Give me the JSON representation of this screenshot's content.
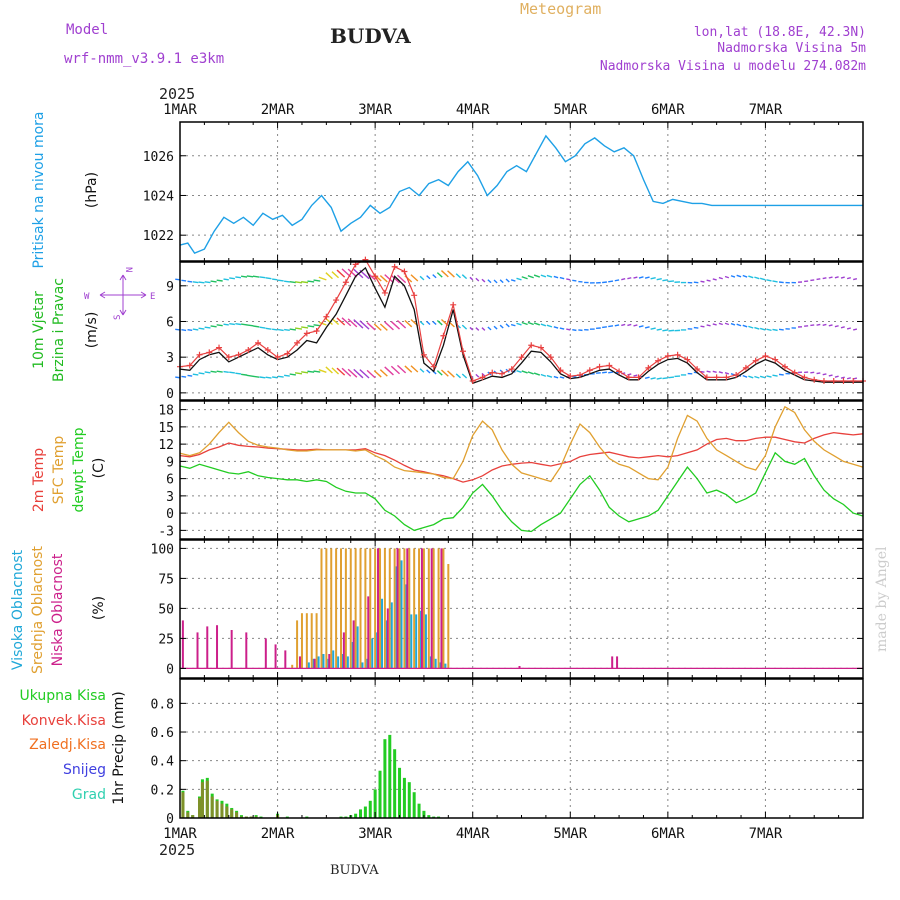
{
  "header": {
    "model_label": "Model",
    "model_name": "wrf-nmm_v3.9.1  e3km",
    "station": "BUDVA",
    "chart_title": "Meteogram",
    "lonlat": "lon,lat (18.8E, 42.3N)",
    "elevation": "Nadmorska Visina 5m",
    "model_elevation": "Nadmorska Visina u modelu 274.082m",
    "year_top": "2025",
    "year_bottom": "2025",
    "footer_station": "BUDVA",
    "watermark": "made by Angel"
  },
  "colors": {
    "pressure": "#1ea0e6",
    "temp2m": "#e8413c",
    "sfc": "#e0a030",
    "dewpt": "#22cc22",
    "cloud_high": "#20a8d8",
    "cloud_mid": "#e0a030",
    "cloud_low": "#cc1f8a",
    "rain_total": "#22cc22",
    "rain_conv": "#e8413c",
    "freezing": "#f07020",
    "snow": "#4040e0",
    "hail": "#30d0b0",
    "wind_label": "#22bb22",
    "purple": "#a040d0",
    "gold": "#e0a030"
  },
  "chart_data": [
    {
      "type": "line",
      "id": "pressure",
      "ylabel_1": "Pritisak na nivou mora",
      "ylabel_2": "(hPa)",
      "x_categories": [
        "1MAR",
        "2MAR",
        "3MAR",
        "4MAR",
        "5MAR",
        "6MAR",
        "7MAR"
      ],
      "ylim": [
        1020.7,
        1027.7
      ],
      "yticks": [
        1022,
        1024,
        1026
      ],
      "x_days": [
        0,
        0.08,
        0.15,
        0.25,
        0.35,
        0.45,
        0.55,
        0.65,
        0.75,
        0.85,
        0.95,
        1.05,
        1.15,
        1.25,
        1.35,
        1.45,
        1.55,
        1.65,
        1.75,
        1.85,
        1.95,
        2.05,
        2.15,
        2.25,
        2.35,
        2.45,
        2.55,
        2.65,
        2.75,
        2.85,
        2.95,
        3.05,
        3.15,
        3.25,
        3.35,
        3.45,
        3.55,
        3.65,
        3.75,
        3.85,
        3.95,
        4.05,
        4.15,
        4.25,
        4.35,
        4.45,
        4.55,
        4.65,
        4.75,
        4.85,
        4.95,
        5.05,
        5.15,
        5.25,
        5.35,
        5.45,
        5.55,
        5.65,
        5.75,
        5.85,
        5.95,
        6.05,
        6.15,
        6.25,
        6.35,
        6.45,
        6.55,
        6.65,
        6.75,
        6.85,
        6.95,
        7.0
      ],
      "values": [
        1021.5,
        1021.6,
        1021.1,
        1021.3,
        1022.2,
        1022.9,
        1022.6,
        1022.9,
        1022.5,
        1023.1,
        1022.8,
        1023.0,
        1022.5,
        1022.8,
        1023.5,
        1024.0,
        1023.4,
        1022.2,
        1022.6,
        1022.9,
        1023.5,
        1023.1,
        1023.4,
        1024.2,
        1024.4,
        1024.0,
        1024.6,
        1024.8,
        1024.5,
        1025.2,
        1025.7,
        1025.0,
        1024.0,
        1024.5,
        1025.2,
        1025.5,
        1025.2,
        1026.1,
        1027.0,
        1026.4,
        1025.7,
        1026.0,
        1026.6,
        1026.9,
        1026.5,
        1026.2,
        1026.4,
        1026.0,
        1024.8,
        1023.7,
        1023.6,
        1023.8,
        1023.7,
        1023.6,
        1023.6,
        1023.5,
        1023.5,
        1023.5,
        1023.5,
        1023.5,
        1023.5,
        1023.5,
        1023.5,
        1023.5,
        1023.5,
        1023.5,
        1023.5,
        1023.5,
        1023.5,
        1023.5,
        1023.5,
        1023.5
      ]
    },
    {
      "type": "line",
      "id": "wind",
      "ylabel_1": "10m Vjetar",
      "ylabel_2": "Brzina i Pravac",
      "ylabel_3": "(m/s)",
      "compass_n": "N",
      "compass_s": "S",
      "compass_w": "W",
      "compass_e": "E",
      "ylim": [
        -0.6,
        11
      ],
      "yticks": [
        0,
        3,
        6,
        9
      ],
      "barb_rows": [
        9.5,
        5.5,
        1.5
      ],
      "speed_x_days": [
        0,
        0.1,
        0.2,
        0.3,
        0.4,
        0.5,
        0.6,
        0.7,
        0.8,
        0.9,
        1.0,
        1.1,
        1.2,
        1.3,
        1.4,
        1.5,
        1.6,
        1.7,
        1.8,
        1.9,
        2.0,
        2.1,
        2.2,
        2.3,
        2.4,
        2.5,
        2.6,
        2.7,
        2.8,
        2.9,
        3.0,
        3.1,
        3.2,
        3.3,
        3.4,
        3.5,
        3.6,
        3.7,
        3.8,
        3.9,
        4.0,
        4.1,
        4.2,
        4.3,
        4.4,
        4.5,
        4.6,
        4.7,
        4.8,
        4.9,
        5.0,
        5.1,
        5.2,
        5.3,
        5.4,
        5.5,
        5.6,
        5.7,
        5.8,
        5.9,
        6.0,
        6.1,
        6.2,
        6.3,
        6.4,
        6.5,
        6.6,
        6.7,
        6.8,
        6.9,
        7.0
      ],
      "speed_values": [
        2.0,
        1.9,
        2.8,
        3.2,
        3.4,
        2.6,
        3.0,
        3.4,
        3.8,
        3.2,
        2.8,
        3.0,
        3.6,
        4.4,
        4.2,
        5.5,
        6.6,
        8.2,
        9.8,
        10.5,
        8.8,
        7.2,
        9.8,
        9.0,
        7.0,
        2.5,
        1.8,
        4.0,
        7.0,
        3.2,
        0.8,
        1.1,
        1.4,
        1.3,
        1.6,
        2.5,
        3.5,
        3.4,
        2.6,
        1.6,
        1.2,
        1.3,
        1.6,
        1.9,
        2.0,
        1.5,
        1.1,
        1.1,
        1.8,
        2.4,
        2.8,
        2.9,
        2.5,
        1.7,
        1.1,
        1.1,
        1.1,
        1.3,
        1.8,
        2.4,
        2.8,
        2.5,
        1.9,
        1.5,
        1.1,
        1.0,
        0.9,
        0.9,
        0.9,
        0.9,
        0.9
      ],
      "gust_x_days": [
        0,
        0.1,
        0.2,
        0.3,
        0.4,
        0.5,
        0.6,
        0.7,
        0.8,
        0.9,
        1.0,
        1.1,
        1.2,
        1.3,
        1.4,
        1.5,
        1.6,
        1.7,
        1.8,
        1.9,
        2.0,
        2.1,
        2.2,
        2.3,
        2.4,
        2.5,
        2.6,
        2.7,
        2.8,
        2.9,
        3.0,
        3.1,
        3.2,
        3.3,
        3.4,
        3.5,
        3.6,
        3.7,
        3.8,
        3.9,
        4.0,
        4.1,
        4.2,
        4.3,
        4.4,
        4.5,
        4.6,
        4.7,
        4.8,
        4.9,
        5.0,
        5.1,
        5.2,
        5.3,
        5.4,
        5.5,
        5.6,
        5.7,
        5.8,
        5.9,
        6.0,
        6.1,
        6.2,
        6.3,
        6.4,
        6.5,
        6.6,
        6.7,
        6.8,
        6.9,
        7.0
      ],
      "gust_values": [
        2.2,
        2.3,
        3.2,
        3.4,
        3.8,
        3.0,
        3.2,
        3.6,
        4.2,
        3.6,
        3.0,
        3.3,
        4.2,
        5.0,
        5.2,
        6.4,
        7.8,
        9.3,
        10.8,
        11.2,
        9.8,
        8.4,
        10.6,
        10.2,
        8.2,
        3.2,
        2.2,
        4.8,
        7.4,
        3.5,
        1.0,
        1.3,
        1.7,
        1.6,
        2.0,
        3.0,
        4.0,
        3.8,
        3.0,
        1.9,
        1.4,
        1.5,
        1.9,
        2.2,
        2.3,
        1.8,
        1.3,
        1.3,
        2.1,
        2.7,
        3.1,
        3.2,
        2.8,
        2.0,
        1.3,
        1.3,
        1.3,
        1.5,
        2.1,
        2.7,
        3.1,
        2.8,
        2.2,
        1.7,
        1.3,
        1.1,
        1.0,
        1.0,
        1.0,
        1.0,
        1.0
      ]
    },
    {
      "type": "line",
      "id": "temperature",
      "ylabel_1": "2m Temp",
      "ylabel_2": "SFC Temp",
      "ylabel_3": "dewpt Temp",
      "ylabel_4": "(C)",
      "ylim": [
        -4.5,
        19.5
      ],
      "yticks": [
        -3,
        0,
        3,
        6,
        9,
        12,
        15,
        18
      ],
      "x_days": [
        0,
        0.1,
        0.2,
        0.3,
        0.4,
        0.5,
        0.6,
        0.7,
        0.8,
        0.9,
        1.0,
        1.1,
        1.2,
        1.3,
        1.4,
        1.5,
        1.6,
        1.7,
        1.8,
        1.9,
        2.0,
        2.1,
        2.2,
        2.3,
        2.4,
        2.5,
        2.6,
        2.7,
        2.8,
        2.9,
        3.0,
        3.1,
        3.2,
        3.3,
        3.4,
        3.5,
        3.6,
        3.7,
        3.8,
        3.9,
        4.0,
        4.1,
        4.2,
        4.3,
        4.4,
        4.5,
        4.6,
        4.7,
        4.8,
        4.9,
        5.0,
        5.1,
        5.2,
        5.3,
        5.4,
        5.5,
        5.6,
        5.7,
        5.8,
        5.9,
        6.0,
        6.1,
        6.2,
        6.3,
        6.4,
        6.5,
        6.6,
        6.7,
        6.8,
        6.9,
        7.0
      ],
      "series": [
        {
          "name": "2m Temp",
          "values": [
            10.0,
            9.8,
            10.2,
            11.0,
            11.5,
            12.2,
            11.8,
            11.6,
            11.5,
            11.3,
            11.2,
            11.1,
            11.0,
            11.0,
            11.1,
            11.0,
            11.0,
            11.0,
            11.0,
            11.2,
            10.5,
            10.0,
            9.2,
            8.3,
            7.5,
            7.2,
            6.8,
            6.5,
            6.0,
            5.4,
            5.8,
            6.5,
            7.5,
            8.2,
            8.5,
            8.7,
            8.8,
            8.5,
            8.2,
            8.6,
            9.0,
            9.8,
            10.2,
            10.4,
            10.6,
            10.2,
            9.8,
            9.6,
            9.8,
            10.0,
            9.8,
            10.0,
            10.5,
            11.0,
            12.0,
            12.8,
            13.0,
            12.6,
            12.6,
            13.0,
            13.2,
            13.2,
            12.8,
            12.4,
            12.2,
            13.0,
            13.6,
            14.0,
            13.8,
            13.6,
            13.8
          ]
        },
        {
          "name": "SFC Temp",
          "values": [
            10.4,
            10.0,
            10.5,
            12.0,
            14.0,
            15.8,
            14.0,
            12.5,
            11.8,
            11.5,
            11.3,
            11.0,
            10.8,
            10.8,
            11.0,
            11.0,
            11.0,
            11.0,
            10.8,
            11.0,
            10.0,
            9.2,
            8.0,
            7.4,
            7.2,
            7.0,
            6.8,
            6.2,
            6.0,
            9.0,
            13.5,
            16.0,
            14.5,
            11.0,
            8.5,
            7.0,
            6.5,
            6.0,
            5.5,
            8.0,
            12.0,
            15.5,
            14.0,
            11.5,
            9.5,
            8.5,
            8.0,
            7.0,
            6.0,
            5.8,
            8.0,
            13.0,
            17.0,
            16.0,
            13.0,
            11.0,
            10.0,
            9.0,
            8.0,
            7.5,
            10.0,
            15.0,
            18.5,
            17.5,
            14.5,
            12.5,
            11.0,
            10.0,
            9.0,
            8.5,
            8.0
          ]
        },
        {
          "name": "dewpt Temp",
          "values": [
            8.2,
            7.8,
            8.5,
            8.0,
            7.5,
            7.0,
            6.8,
            7.2,
            6.5,
            6.2,
            6.0,
            5.8,
            5.8,
            5.5,
            5.8,
            5.5,
            4.5,
            3.8,
            3.5,
            3.5,
            2.5,
            0.5,
            -0.5,
            -2.0,
            -3.0,
            -2.5,
            -2.0,
            -1.0,
            -0.8,
            1.0,
            3.5,
            5.0,
            3.0,
            0.5,
            -1.5,
            -3.0,
            -3.2,
            -2.0,
            -1.0,
            0.0,
            2.5,
            5.0,
            6.5,
            4.0,
            1.0,
            -0.5,
            -1.5,
            -1.0,
            -0.5,
            0.5,
            3.0,
            5.5,
            8.0,
            6.0,
            3.5,
            4.0,
            3.2,
            1.8,
            2.5,
            3.5,
            7.0,
            10.5,
            9.0,
            8.5,
            9.5,
            6.5,
            4.0,
            2.5,
            1.5,
            0.0,
            -0.5
          ]
        }
      ]
    },
    {
      "type": "bar",
      "id": "clouds",
      "ylabel_1": "Visoka Oblacnost",
      "ylabel_2": "Srednja Oblacnost",
      "ylabel_3": "Niska Oblacnost",
      "ylabel_4": "(%)",
      "ylim": [
        -8,
        107
      ],
      "yticks": [
        0,
        25,
        50,
        75,
        100
      ],
      "high": {
        "x_days": [
          1.3,
          1.35,
          1.4,
          1.45,
          1.5,
          1.55,
          1.6,
          1.65,
          1.7,
          1.75,
          1.8,
          1.85,
          1.9,
          1.95,
          2.0,
          2.05,
          2.1,
          2.15,
          2.2,
          2.25,
          2.3,
          2.35,
          2.4,
          2.45,
          2.5,
          2.55,
          2.6,
          2.65,
          2.7
        ],
        "values": [
          5,
          8,
          10,
          12,
          8,
          15,
          10,
          12,
          10,
          22,
          35,
          5,
          8,
          25,
          30,
          58,
          40,
          55,
          85,
          90,
          70,
          45,
          45,
          48,
          45,
          10,
          8,
          5,
          4
        ]
      },
      "mid": {
        "x_days": [
          1.15,
          1.2,
          1.25,
          1.3,
          1.35,
          1.4,
          1.45,
          1.5,
          1.55,
          1.6,
          1.65,
          1.7,
          1.75,
          1.8,
          1.85,
          1.9,
          1.95,
          2.0,
          2.05,
          2.1,
          2.15,
          2.2,
          2.25,
          2.3,
          2.35,
          2.4,
          2.45,
          2.5,
          2.55,
          2.6,
          2.65,
          2.7,
          2.75
        ],
        "values": [
          3,
          40,
          46,
          46,
          46,
          46,
          100,
          100,
          100,
          100,
          100,
          100,
          100,
          100,
          100,
          100,
          100,
          100,
          100,
          100,
          100,
          100,
          100,
          100,
          100,
          100,
          100,
          100,
          100,
          100,
          100,
          100,
          87
        ]
      },
      "low": {
        "x_days": [
          0.05,
          0.2,
          0.3,
          0.4,
          0.55,
          0.7,
          0.9,
          1.0,
          1.1,
          1.25,
          1.4,
          1.55,
          1.7,
          1.8,
          1.95,
          2.05,
          2.15,
          2.25,
          2.35,
          2.5,
          2.6,
          2.7,
          3.5,
          4.45,
          4.5
        ],
        "values": [
          40,
          30,
          35,
          36,
          32,
          30,
          25,
          20,
          15,
          10,
          8,
          12,
          30,
          40,
          60,
          100,
          50,
          100,
          100,
          100,
          100,
          100,
          2,
          10,
          10
        ]
      }
    },
    {
      "type": "bar",
      "id": "precip",
      "ylabel_1": "1hr Precip (mm)",
      "legend": [
        "Ukupna Kisa",
        "Konvek.Kisa",
        "Zaledj.Kisa",
        "Snijeg",
        "Grad"
      ],
      "ylim": [
        0,
        0.97
      ],
      "yticks": [
        0,
        0.2,
        0.4,
        0.6,
        0.8
      ],
      "x_days": [
        0.03,
        0.08,
        0.13,
        0.2,
        0.23,
        0.28,
        0.33,
        0.38,
        0.43,
        0.48,
        0.53,
        0.58,
        0.63,
        0.68,
        0.73,
        0.78,
        0.83,
        0.88,
        1.0,
        1.1,
        1.3,
        1.65,
        1.7,
        1.75,
        1.8,
        1.85,
        1.9,
        1.95,
        2.0,
        2.05,
        2.1,
        2.15,
        2.2,
        2.25,
        2.3,
        2.35,
        2.4,
        2.45,
        2.5,
        2.55,
        2.6,
        2.65
      ],
      "total": [
        0.19,
        0.05,
        0.02,
        0.15,
        0.27,
        0.28,
        0.17,
        0.13,
        0.12,
        0.1,
        0.07,
        0.05,
        0.02,
        0.01,
        0.01,
        0.02,
        0.01,
        0.0,
        0.03,
        0.01,
        0.01,
        0.01,
        0.01,
        0.02,
        0.03,
        0.06,
        0.08,
        0.12,
        0.2,
        0.33,
        0.55,
        0.58,
        0.48,
        0.35,
        0.28,
        0.25,
        0.18,
        0.1,
        0.05,
        0.02,
        0.01,
        0.01
      ],
      "conv": [
        0.18,
        0.04,
        0.02,
        0.14,
        0.25,
        0.26,
        0.15,
        0.12,
        0.1,
        0.08,
        0.06,
        0.04,
        0.01,
        0.01,
        0.01,
        0.01,
        0.0,
        0.0,
        0.02,
        0.0,
        0.0,
        0.0,
        0.0,
        0.0,
        0.0,
        0.0,
        0.0,
        0.0,
        0.0,
        0.0,
        0.0,
        0.0,
        0.0,
        0.0,
        0.0,
        0.0,
        0.0,
        0.0,
        0.0,
        0.0,
        0.0,
        0.0
      ]
    }
  ]
}
